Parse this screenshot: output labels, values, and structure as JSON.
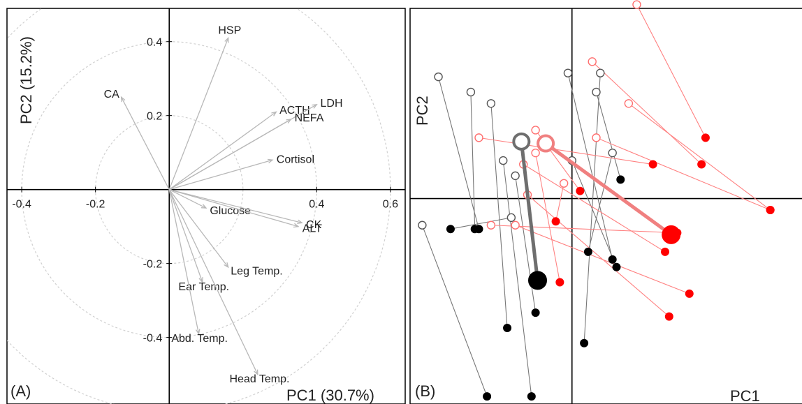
{
  "chart_data": [
    {
      "type": "scatter",
      "panel_label": "(A)",
      "xlabel": "PC1 (30.7%)",
      "ylabel": "PC2 (15.2%)",
      "xlim": [
        -0.44,
        0.64
      ],
      "ylim": [
        -0.58,
        0.49
      ],
      "x_ticks": [
        -0.4,
        -0.2,
        0.4,
        0.6
      ],
      "y_ticks": [
        0.4,
        0.2,
        -0.2,
        -0.4
      ],
      "tick_labels": {
        "x": [
          "-0.4",
          "-0.2",
          "0.4",
          "0.6"
        ],
        "y": [
          "0.4",
          "0.2",
          "-0.2",
          "-0.4"
        ]
      },
      "circles": [
        0.2,
        0.4,
        0.6
      ],
      "vectors": [
        {
          "name": "HSP",
          "x": 0.16,
          "y": 0.41
        },
        {
          "name": "CA",
          "x": -0.13,
          "y": 0.25
        },
        {
          "name": "ACTH",
          "x": 0.29,
          "y": 0.21
        },
        {
          "name": "LDH",
          "x": 0.4,
          "y": 0.23
        },
        {
          "name": "NEFA",
          "x": 0.33,
          "y": 0.19
        },
        {
          "name": "Cortisol",
          "x": 0.28,
          "y": 0.08
        },
        {
          "name": "Glucose",
          "x": 0.1,
          "y": -0.05
        },
        {
          "name": "CK",
          "x": 0.36,
          "y": -0.09
        },
        {
          "name": "ALT",
          "x": 0.35,
          "y": -0.1
        },
        {
          "name": "Leg Temp.",
          "x": 0.16,
          "y": -0.21
        },
        {
          "name": "Ear Temp.",
          "x": 0.09,
          "y": -0.25
        },
        {
          "name": "Abd. Temp.",
          "x": 0.08,
          "y": -0.39
        },
        {
          "name": "Head Temp.",
          "x": 0.24,
          "y": -0.5
        }
      ]
    },
    {
      "type": "scatter",
      "panel_label": "(B)",
      "xlabel": "PC1",
      "ylabel": "PC2",
      "xlim": [
        -4.0,
        5.7
      ],
      "ylim": [
        -5.4,
        5.0
      ],
      "colors": {
        "group1": "#000000",
        "group2": "#ff0000",
        "group2_line": "#ff8080",
        "group1_line": "#777777"
      },
      "group1_pairs": [
        {
          "open": [
            -3.3,
            3.2
          ],
          "filled": [
            -2.3,
            -0.8
          ]
        },
        {
          "open": [
            -2.5,
            2.8
          ],
          "filled": [
            -2.4,
            -0.8
          ]
        },
        {
          "open": [
            -2.0,
            2.5
          ],
          "filled": [
            -1.6,
            -3.4
          ]
        },
        {
          "open": [
            -3.7,
            -0.7
          ],
          "filled": [
            -2.1,
            -5.2
          ]
        },
        {
          "open": [
            -1.4,
            0.6
          ],
          "filled": [
            -0.9,
            -3.0
          ]
        },
        {
          "open": [
            -1.7,
            1.0
          ],
          "filled": [
            -1.0,
            -5.2
          ]
        },
        {
          "open": [
            -1.5,
            -0.5
          ],
          "filled": [
            -3.0,
            -0.8
          ]
        },
        {
          "open": [
            -0.1,
            3.3
          ],
          "filled": [
            1.0,
            -1.6
          ]
        },
        {
          "open": [
            0.0,
            1.0
          ],
          "filled": [
            1.1,
            -1.8
          ]
        },
        {
          "open": [
            0.6,
            2.8
          ],
          "filled": [
            1.2,
            0.5
          ]
        },
        {
          "open": [
            0.7,
            3.3
          ],
          "filled": [
            0.3,
            -3.8
          ]
        },
        {
          "open": [
            1.0,
            1.2
          ],
          "filled": [
            0.4,
            -1.4
          ]
        }
      ],
      "group2_pairs": [
        {
          "open": [
            1.6,
            5.1
          ],
          "filled": [
            3.3,
            1.6
          ]
        },
        {
          "open": [
            1.4,
            2.5
          ],
          "filled": [
            4.9,
            -0.3
          ]
        },
        {
          "open": [
            -2.3,
            1.6
          ],
          "filled": [
            2.0,
            0.9
          ]
        },
        {
          "open": [
            -1.2,
            0.9
          ],
          "filled": [
            2.3,
            -1.4
          ]
        },
        {
          "open": [
            0.5,
            3.6
          ],
          "filled": [
            3.2,
            0.9
          ]
        },
        {
          "open": [
            -2.0,
            -0.7
          ],
          "filled": [
            2.6,
            -0.9
          ]
        },
        {
          "open": [
            -0.9,
            1.8
          ],
          "filled": [
            0.2,
            0.2
          ]
        },
        {
          "open": [
            0.6,
            1.6
          ],
          "filled": [
            4.9,
            -0.3
          ]
        },
        {
          "open": [
            -1.1,
            0.1
          ],
          "filled": [
            2.4,
            -3.1
          ]
        },
        {
          "open": [
            -0.2,
            0.4
          ],
          "filled": [
            -0.4,
            -0.6
          ]
        },
        {
          "open": [
            -1.4,
            -0.7
          ],
          "filled": [
            2.9,
            -2.5
          ]
        },
        {
          "open": [
            -0.9,
            1.2
          ],
          "filled": [
            -0.3,
            -2.2
          ]
        }
      ],
      "group1_centroid": {
        "open": [
          -1.25,
          1.5
        ],
        "filled": [
          -0.85,
          -2.15
        ]
      },
      "group2_centroid": {
        "open": [
          -0.65,
          1.45
        ],
        "filled": [
          2.45,
          -0.95
        ]
      }
    }
  ]
}
